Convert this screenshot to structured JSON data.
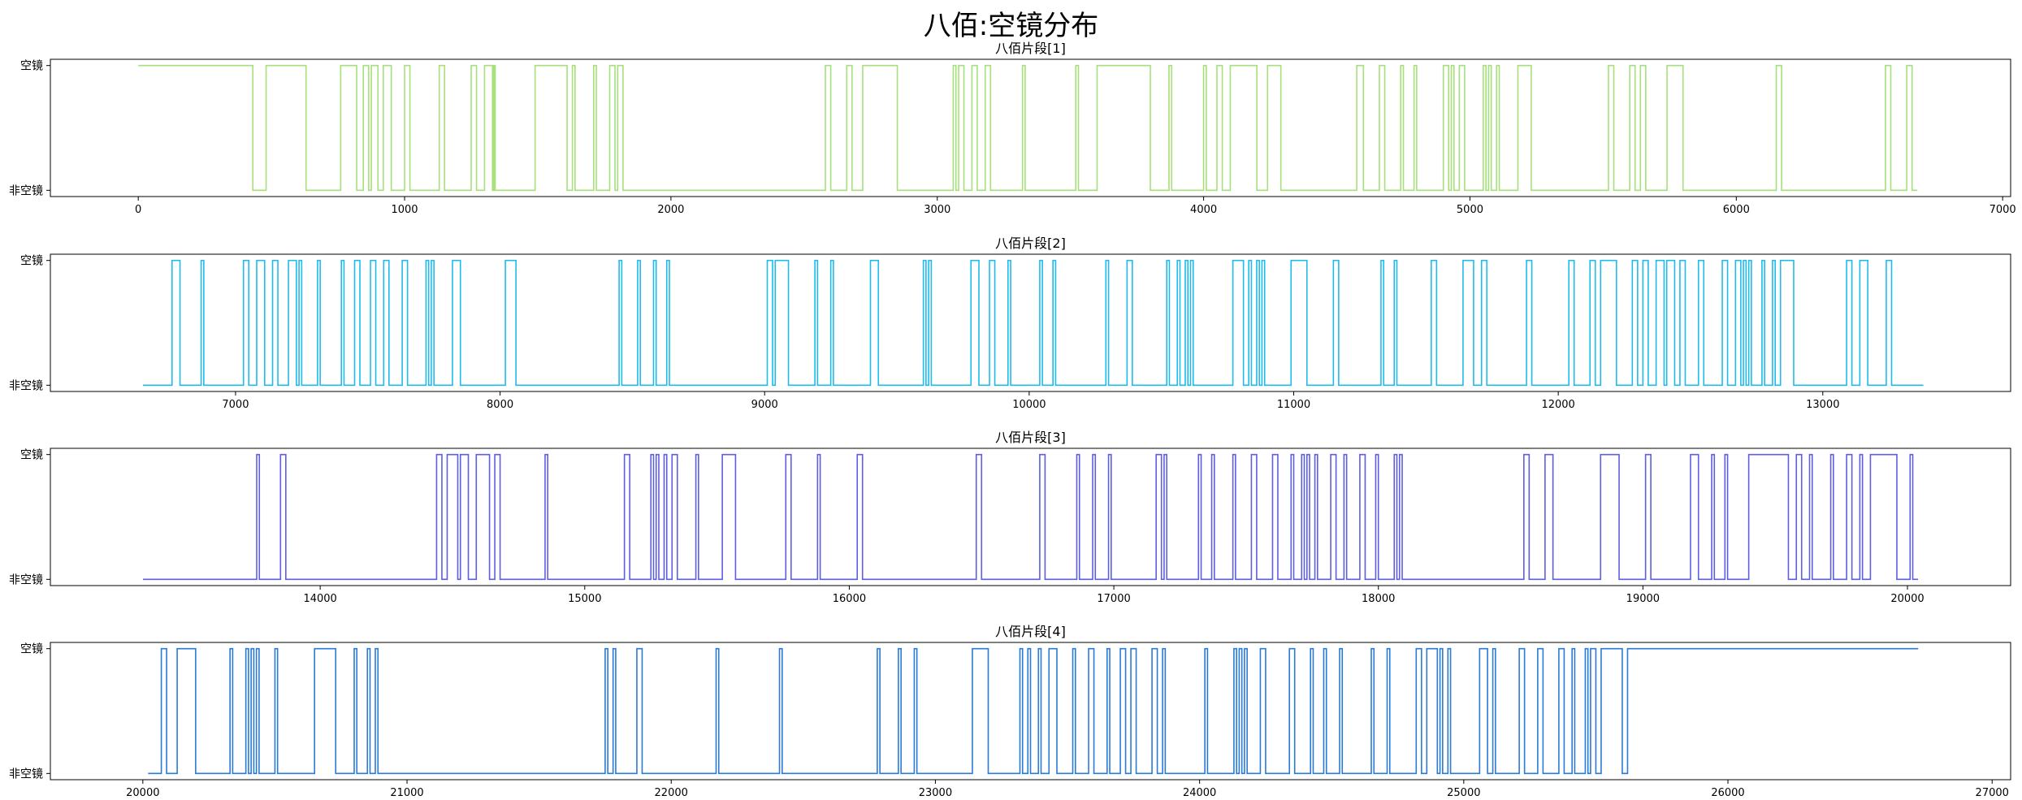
{
  "title": "八佰:空镜分布",
  "y_labels": {
    "high": "空镜",
    "low": "非空镜"
  },
  "chart_data": [
    {
      "type": "line",
      "title": "八佰片段[1]",
      "color": "#a6e07a",
      "xlim": [
        -330,
        7030
      ],
      "xticks": [
        0,
        1000,
        2000,
        3000,
        4000,
        5000,
        6000,
        7000
      ],
      "ylim": [
        -0.05,
        1.05
      ],
      "yticks": [
        0,
        1
      ],
      "x_start": 0,
      "x_end": 6680,
      "step_series": [
        {
          "name": "空镜",
          "intervals": [
            [
              0,
              430
            ],
            [
              480,
              630
            ],
            [
              760,
              820
            ],
            [
              845,
              865
            ],
            [
              875,
              900
            ],
            [
              920,
              950
            ],
            [
              1000,
              1020
            ],
            [
              1130,
              1150
            ],
            [
              1250,
              1270
            ],
            [
              1300,
              1330
            ],
            [
              1335,
              1340
            ],
            [
              1490,
              1610
            ],
            [
              1630,
              1640
            ],
            [
              1710,
              1720
            ],
            [
              1770,
              1790
            ],
            [
              1800,
              1820
            ],
            [
              2580,
              2600
            ],
            [
              2660,
              2680
            ],
            [
              2720,
              2850
            ],
            [
              3060,
              3070
            ],
            [
              3080,
              3100
            ],
            [
              3130,
              3150
            ],
            [
              3180,
              3200
            ],
            [
              3320,
              3330
            ],
            [
              3520,
              3530
            ],
            [
              3600,
              3800
            ],
            [
              3870,
              3880
            ],
            [
              4000,
              4010
            ],
            [
              4050,
              4070
            ],
            [
              4100,
              4200
            ],
            [
              4240,
              4290
            ],
            [
              4575,
              4600
            ],
            [
              4660,
              4680
            ],
            [
              4740,
              4750
            ],
            [
              4790,
              4800
            ],
            [
              4900,
              4920
            ],
            [
              4930,
              4940
            ],
            [
              4960,
              4980
            ],
            [
              5050,
              5060
            ],
            [
              5070,
              5080
            ],
            [
              5100,
              5110
            ],
            [
              5180,
              5230
            ],
            [
              5520,
              5540
            ],
            [
              5600,
              5620
            ],
            [
              5640,
              5660
            ],
            [
              5740,
              5800
            ],
            [
              6150,
              6170
            ],
            [
              6560,
              6580
            ],
            [
              6640,
              6660
            ]
          ]
        }
      ]
    },
    {
      "type": "line",
      "title": "八佰片段[2]",
      "color": "#1ebcec",
      "xlim": [
        6300,
        13710
      ],
      "xticks": [
        7000,
        8000,
        9000,
        10000,
        11000,
        12000,
        13000
      ],
      "ylim": [
        -0.05,
        1.05
      ],
      "yticks": [
        0,
        1
      ],
      "x_start": 6650,
      "x_end": 13380,
      "step_series": [
        {
          "name": "空镜",
          "intervals": [
            [
              6760,
              6790
            ],
            [
              6870,
              6880
            ],
            [
              7030,
              7050
            ],
            [
              7080,
              7110
            ],
            [
              7140,
              7160
            ],
            [
              7200,
              7230
            ],
            [
              7240,
              7250
            ],
            [
              7310,
              7320
            ],
            [
              7400,
              7410
            ],
            [
              7450,
              7470
            ],
            [
              7510,
              7530
            ],
            [
              7560,
              7580
            ],
            [
              7630,
              7650
            ],
            [
              7720,
              7730
            ],
            [
              7740,
              7750
            ],
            [
              7820,
              7850
            ],
            [
              8020,
              8060
            ],
            [
              8450,
              8460
            ],
            [
              8520,
              8530
            ],
            [
              8580,
              8590
            ],
            [
              8630,
              8640
            ],
            [
              9010,
              9030
            ],
            [
              9040,
              9090
            ],
            [
              9190,
              9200
            ],
            [
              9250,
              9260
            ],
            [
              9400,
              9430
            ],
            [
              9600,
              9610
            ],
            [
              9620,
              9630
            ],
            [
              9780,
              9810
            ],
            [
              9850,
              9870
            ],
            [
              9920,
              9930
            ],
            [
              10040,
              10050
            ],
            [
              10090,
              10100
            ],
            [
              10290,
              10300
            ],
            [
              10370,
              10390
            ],
            [
              10520,
              10530
            ],
            [
              10560,
              10570
            ],
            [
              10590,
              10600
            ],
            [
              10610,
              10620
            ],
            [
              10770,
              10810
            ],
            [
              10830,
              10840
            ],
            [
              10860,
              10870
            ],
            [
              10880,
              10890
            ],
            [
              10990,
              11050
            ],
            [
              11150,
              11170
            ],
            [
              11330,
              11340
            ],
            [
              11380,
              11390
            ],
            [
              11520,
              11540
            ],
            [
              11640,
              11680
            ],
            [
              11710,
              11730
            ],
            [
              11880,
              11900
            ],
            [
              12040,
              12060
            ],
            [
              12120,
              12140
            ],
            [
              12160,
              12220
            ],
            [
              12280,
              12300
            ],
            [
              12320,
              12340
            ],
            [
              12370,
              12400
            ],
            [
              12410,
              12440
            ],
            [
              12460,
              12480
            ],
            [
              12530,
              12550
            ],
            [
              12620,
              12640
            ],
            [
              12670,
              12690
            ],
            [
              12700,
              12710
            ],
            [
              12720,
              12730
            ],
            [
              12770,
              12780
            ],
            [
              12810,
              12820
            ],
            [
              12840,
              12890
            ],
            [
              13090,
              13110
            ],
            [
              13140,
              13170
            ],
            [
              13240,
              13260
            ]
          ]
        }
      ]
    },
    {
      "type": "line",
      "title": "八佰片段[3]",
      "color": "#5e5ee0",
      "xlim": [
        12980,
        20390
      ],
      "xticks": [
        14000,
        15000,
        16000,
        17000,
        18000,
        19000,
        20000
      ],
      "ylim": [
        -0.05,
        1.05
      ],
      "yticks": [
        0,
        1
      ],
      "x_start": 13330,
      "x_end": 20040,
      "step_series": [
        {
          "name": "空镜",
          "intervals": [
            [
              13760,
              13770
            ],
            [
              13850,
              13870
            ],
            [
              14440,
              14460
            ],
            [
              14480,
              14520
            ],
            [
              14530,
              14560
            ],
            [
              14590,
              14640
            ],
            [
              14660,
              14680
            ],
            [
              14850,
              14860
            ],
            [
              15150,
              15170
            ],
            [
              15250,
              15260
            ],
            [
              15270,
              15280
            ],
            [
              15300,
              15310
            ],
            [
              15330,
              15350
            ],
            [
              15420,
              15430
            ],
            [
              15520,
              15570
            ],
            [
              15760,
              15780
            ],
            [
              15880,
              15890
            ],
            [
              16030,
              16050
            ],
            [
              16480,
              16500
            ],
            [
              16720,
              16740
            ],
            [
              16860,
              16870
            ],
            [
              16920,
              16930
            ],
            [
              16980,
              16990
            ],
            [
              17160,
              17180
            ],
            [
              17190,
              17200
            ],
            [
              17320,
              17330
            ],
            [
              17370,
              17380
            ],
            [
              17450,
              17460
            ],
            [
              17520,
              17540
            ],
            [
              17600,
              17620
            ],
            [
              17670,
              17680
            ],
            [
              17710,
              17720
            ],
            [
              17730,
              17740
            ],
            [
              17760,
              17770
            ],
            [
              17820,
              17840
            ],
            [
              17870,
              17880
            ],
            [
              17930,
              17950
            ],
            [
              17990,
              18000
            ],
            [
              18060,
              18070
            ],
            [
              18080,
              18090
            ],
            [
              18550,
              18570
            ],
            [
              18630,
              18660
            ],
            [
              18840,
              18910
            ],
            [
              19010,
              19030
            ],
            [
              19180,
              19210
            ],
            [
              19260,
              19270
            ],
            [
              19310,
              19320
            ],
            [
              19400,
              19550
            ],
            [
              19580,
              19600
            ],
            [
              19630,
              19640
            ],
            [
              19710,
              19720
            ],
            [
              19770,
              19790
            ],
            [
              19820,
              19830
            ],
            [
              19860,
              19960
            ],
            [
              20010,
              20020
            ]
          ]
        }
      ]
    },
    {
      "type": "line",
      "title": "八佰片段[4]",
      "color": "#2a7ad6",
      "xlim": [
        19650,
        27070
      ],
      "xticks": [
        20000,
        21000,
        22000,
        23000,
        24000,
        25000,
        26000,
        27000
      ],
      "ylim": [
        -0.05,
        1.05
      ],
      "yticks": [
        0,
        1
      ],
      "x_start": 20020,
      "x_end": 26720,
      "step_series": [
        {
          "name": "空镜",
          "intervals": [
            [
              20070,
              20090
            ],
            [
              20130,
              20200
            ],
            [
              20330,
              20340
            ],
            [
              20390,
              20400
            ],
            [
              20410,
              20420
            ],
            [
              20430,
              20440
            ],
            [
              20500,
              20510
            ],
            [
              20650,
              20730
            ],
            [
              20800,
              20810
            ],
            [
              20850,
              20860
            ],
            [
              20880,
              20890
            ],
            [
              21750,
              21760
            ],
            [
              21780,
              21790
            ],
            [
              21870,
              21890
            ],
            [
              22170,
              22180
            ],
            [
              22410,
              22420
            ],
            [
              22780,
              22790
            ],
            [
              22860,
              22870
            ],
            [
              22920,
              22930
            ],
            [
              23140,
              23200
            ],
            [
              23320,
              23330
            ],
            [
              23350,
              23360
            ],
            [
              23390,
              23400
            ],
            [
              23430,
              23460
            ],
            [
              23520,
              23530
            ],
            [
              23580,
              23600
            ],
            [
              23650,
              23660
            ],
            [
              23700,
              23720
            ],
            [
              23740,
              23760
            ],
            [
              23820,
              23840
            ],
            [
              23860,
              23870
            ],
            [
              24020,
              24030
            ],
            [
              24130,
              24140
            ],
            [
              24150,
              24160
            ],
            [
              24170,
              24180
            ],
            [
              24230,
              24250
            ],
            [
              24340,
              24360
            ],
            [
              24420,
              24430
            ],
            [
              24470,
              24480
            ],
            [
              24530,
              24540
            ],
            [
              24650,
              24660
            ],
            [
              24710,
              24720
            ],
            [
              24820,
              24840
            ],
            [
              24860,
              24900
            ],
            [
              24910,
              24920
            ],
            [
              24940,
              24950
            ],
            [
              25060,
              25090
            ],
            [
              25110,
              25120
            ],
            [
              25210,
              25230
            ],
            [
              25280,
              25300
            ],
            [
              25360,
              25380
            ],
            [
              25410,
              25420
            ],
            [
              25460,
              25470
            ],
            [
              25480,
              25500
            ],
            [
              25520,
              25600
            ],
            [
              25620,
              26720
            ]
          ]
        }
      ]
    }
  ]
}
